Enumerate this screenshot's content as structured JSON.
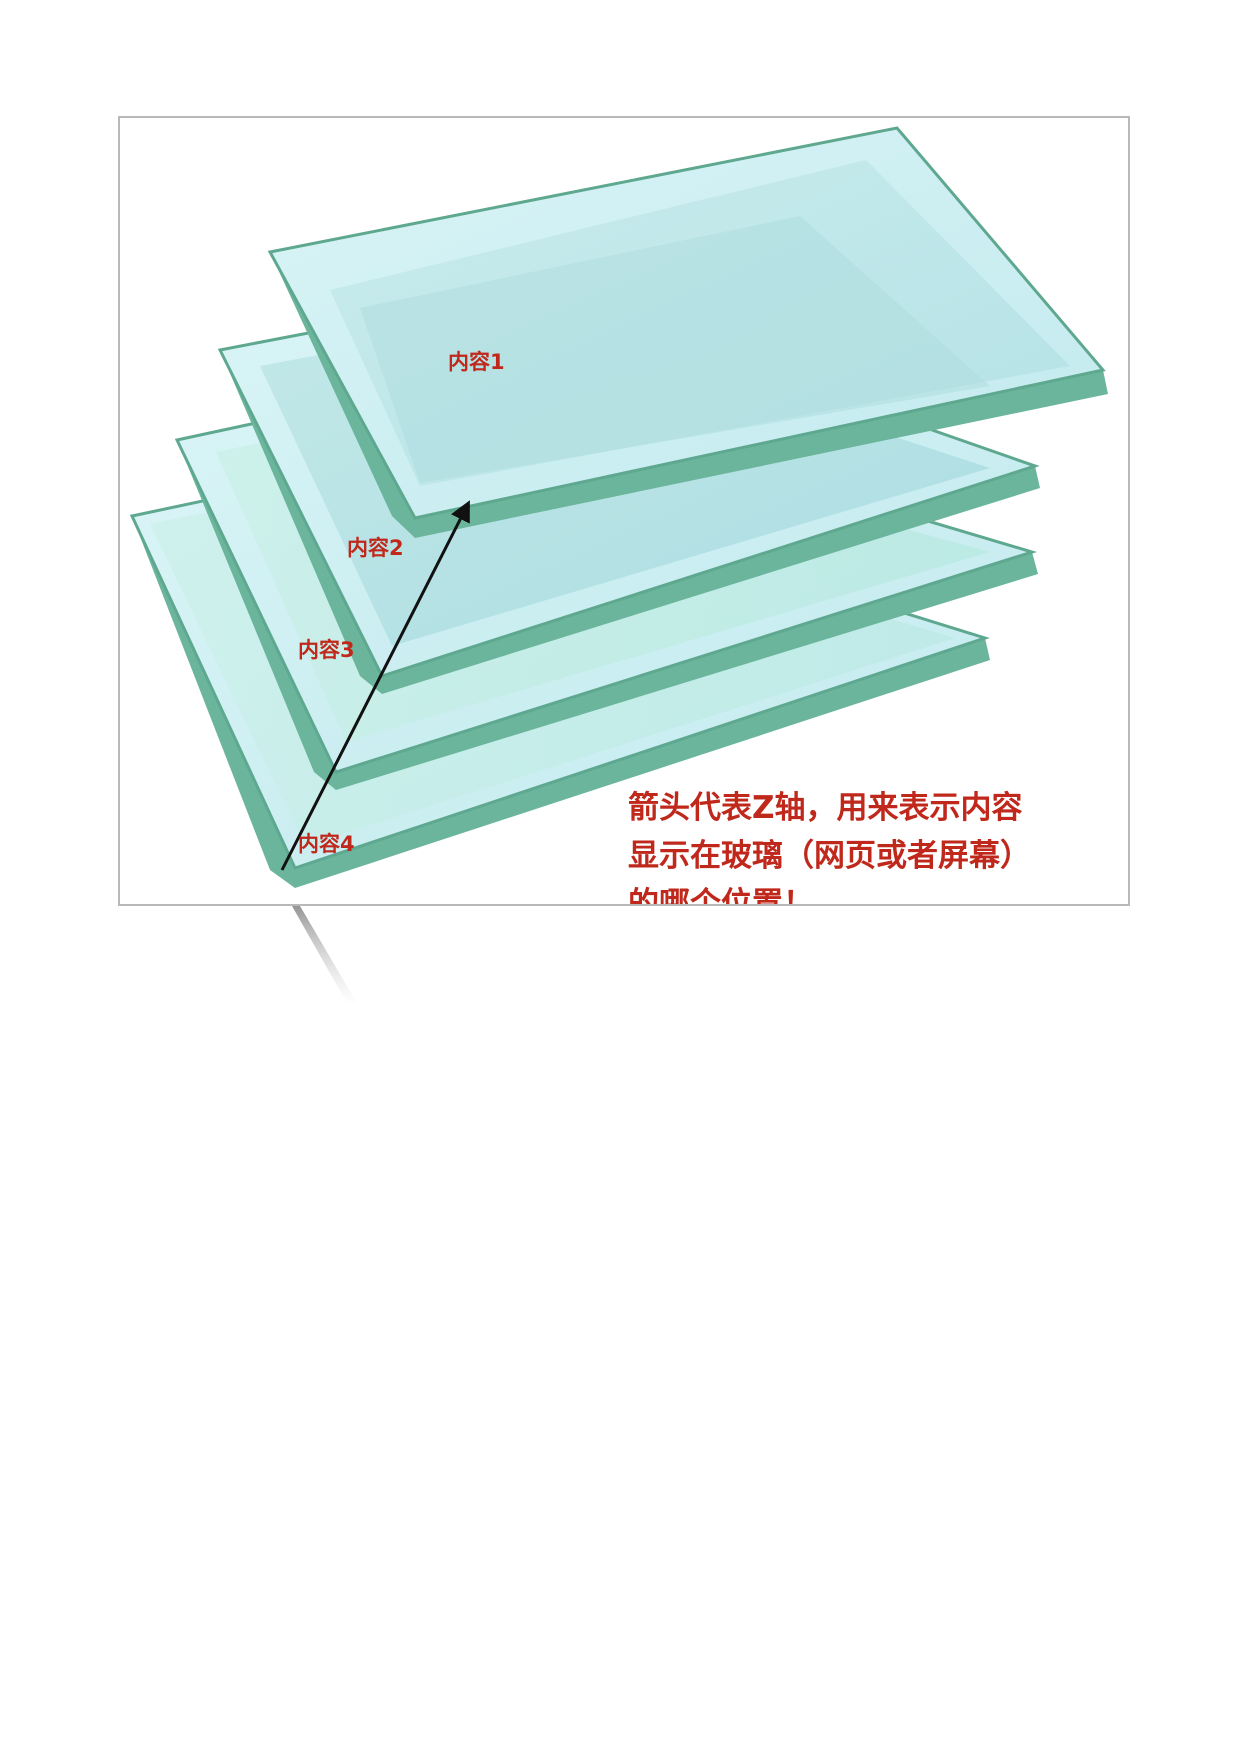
{
  "figure": {
    "layers": [
      {
        "label": "内容1"
      },
      {
        "label": "内容2"
      },
      {
        "label": "内容3"
      },
      {
        "label": "内容4"
      }
    ],
    "caption": "箭头代表Z轴，用来表示内容显示在玻璃（网页或者屏幕）的哪个位置！",
    "colors": {
      "glass_face": "#d4f0f3",
      "glass_face_inner": "#b5e3e6",
      "glass_edge": "#6ab59b",
      "glass_edge_dark": "#4f9a84",
      "label_red": "#c0281c",
      "arrow": "#111111",
      "frame_border": "#b9b9b9"
    },
    "arrow": {
      "meaning": "z-axis"
    }
  }
}
